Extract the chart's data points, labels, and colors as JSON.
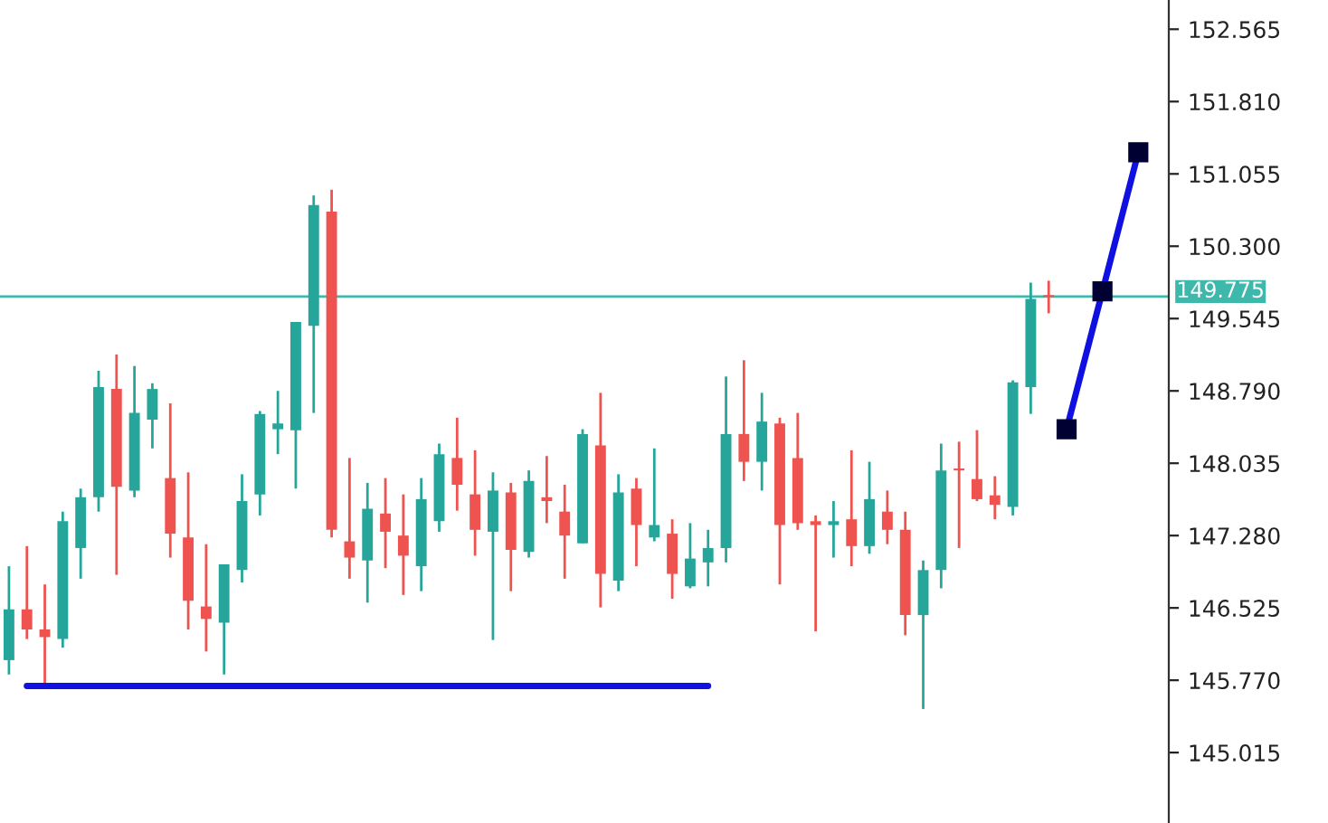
{
  "chart_data": {
    "type": "candlestick",
    "categories": [
      null,
      null,
      null,
      null,
      null,
      null,
      null,
      null,
      null,
      null,
      null,
      null,
      null,
      null,
      null,
      null,
      null,
      null,
      null,
      null,
      null,
      null,
      null,
      null,
      null,
      null,
      null,
      null,
      null,
      null,
      null,
      null,
      null,
      null,
      null,
      null,
      null,
      null,
      null,
      null,
      null,
      null,
      null,
      null,
      null,
      null,
      null,
      null,
      null,
      null,
      null,
      null,
      null,
      null,
      null,
      null,
      null,
      null,
      null,
      null,
      null,
      null,
      null,
      null
    ],
    "ohlc": [
      [
        145.98,
        146.96,
        145.83,
        146.51
      ],
      [
        146.51,
        147.17,
        146.2,
        146.3
      ],
      [
        146.3,
        146.77,
        145.73,
        146.22
      ],
      [
        146.2,
        147.53,
        146.11,
        147.43
      ],
      [
        147.15,
        147.77,
        146.83,
        147.68
      ],
      [
        147.68,
        149.0,
        147.53,
        148.83
      ],
      [
        148.81,
        149.17,
        146.87,
        147.79
      ],
      [
        147.75,
        149.05,
        147.68,
        148.56
      ],
      [
        148.49,
        148.87,
        148.19,
        148.81
      ],
      [
        147.88,
        148.66,
        147.05,
        147.3
      ],
      [
        147.26,
        147.94,
        146.3,
        146.6
      ],
      [
        146.54,
        147.19,
        146.07,
        146.41
      ],
      [
        146.37,
        146.98,
        145.83,
        146.98
      ],
      [
        146.92,
        147.92,
        146.79,
        147.64
      ],
      [
        147.71,
        148.58,
        147.49,
        148.55
      ],
      [
        148.39,
        148.79,
        148.13,
        148.45
      ],
      [
        148.38,
        149.51,
        147.77,
        149.51
      ],
      [
        149.47,
        150.83,
        148.56,
        150.73
      ],
      [
        150.66,
        150.89,
        147.26,
        147.34
      ],
      [
        147.22,
        148.09,
        146.83,
        147.05
      ],
      [
        147.02,
        147.83,
        146.58,
        147.56
      ],
      [
        147.51,
        147.88,
        146.94,
        147.32
      ],
      [
        147.28,
        147.71,
        146.66,
        147.07
      ],
      [
        146.96,
        147.88,
        146.7,
        147.66
      ],
      [
        147.43,
        148.24,
        147.32,
        148.13
      ],
      [
        148.09,
        148.51,
        147.54,
        147.81
      ],
      [
        147.71,
        148.17,
        147.07,
        147.34
      ],
      [
        147.32,
        147.94,
        146.19,
        147.75
      ],
      [
        147.73,
        147.83,
        146.7,
        147.13
      ],
      [
        147.11,
        147.96,
        147.05,
        147.85
      ],
      [
        147.68,
        148.11,
        147.41,
        147.64
      ],
      [
        147.53,
        147.81,
        146.83,
        147.28
      ],
      [
        147.2,
        148.39,
        147.2,
        148.34
      ],
      [
        148.22,
        148.77,
        146.53,
        146.88
      ],
      [
        146.81,
        147.92,
        146.7,
        147.73
      ],
      [
        147.77,
        147.88,
        146.96,
        147.39
      ],
      [
        147.26,
        148.19,
        147.22,
        147.39
      ],
      [
        147.3,
        147.45,
        146.62,
        146.88
      ],
      [
        146.75,
        147.41,
        146.73,
        147.04
      ],
      [
        147.0,
        147.34,
        146.75,
        147.15
      ],
      [
        147.15,
        148.94,
        147.0,
        148.34
      ],
      [
        148.34,
        149.11,
        147.85,
        148.05
      ],
      [
        148.05,
        148.77,
        147.75,
        148.47
      ],
      [
        148.45,
        148.51,
        146.77,
        147.39
      ],
      [
        148.09,
        148.56,
        147.34,
        147.41
      ],
      [
        147.43,
        147.49,
        146.28,
        147.39
      ],
      [
        147.39,
        147.64,
        147.05,
        147.43
      ],
      [
        147.45,
        148.17,
        146.96,
        147.17
      ],
      [
        147.17,
        148.05,
        147.09,
        147.66
      ],
      [
        147.53,
        147.75,
        147.19,
        147.34
      ],
      [
        147.34,
        147.53,
        146.24,
        146.45
      ],
      [
        146.45,
        147.02,
        145.47,
        146.92
      ],
      [
        146.92,
        148.24,
        146.73,
        147.96
      ],
      [
        147.98,
        148.26,
        147.15,
        147.96
      ],
      [
        147.87,
        148.38,
        147.64,
        147.66
      ],
      [
        147.7,
        147.9,
        147.45,
        147.6
      ],
      [
        147.58,
        148.9,
        147.49,
        148.88
      ],
      [
        148.83,
        149.92,
        148.55,
        149.75
      ],
      [
        149.79,
        149.94,
        149.6,
        149.77
      ],
      null,
      null,
      null,
      null,
      null
    ],
    "colors": [
      "#26a69a",
      "#ef5350",
      "#ef5350",
      "#26a69a",
      "#26a69a",
      "#26a69a",
      "#ef5350",
      "#26a69a",
      "#26a69a",
      "#ef5350",
      "#ef5350",
      "#ef5350",
      "#26a69a",
      "#26a69a",
      "#26a69a",
      "#26a69a",
      "#26a69a",
      "#26a69a",
      "#ef5350",
      "#ef5350",
      "#26a69a",
      "#ef5350",
      "#ef5350",
      "#26a69a",
      "#26a69a",
      "#ef5350",
      "#ef5350",
      "#26a69a",
      "#ef5350",
      "#26a69a",
      "#ef5350",
      "#ef5350",
      "#26a69a",
      "#ef5350",
      "#26a69a",
      "#ef5350",
      "#26a69a",
      "#ef5350",
      "#26a69a",
      "#26a69a",
      "#26a69a",
      "#ef5350",
      "#26a69a",
      "#ef5350",
      "#ef5350",
      "#ef5350",
      "#26a69a",
      "#ef5350",
      "#26a69a",
      "#ef5350",
      "#ef5350",
      "#26a69a",
      "#26a69a",
      "#ef5350",
      "#ef5350",
      "#ef5350",
      "#26a69a",
      "#26a69a",
      "#ef5350",
      null,
      null,
      null,
      null,
      null
    ],
    "series": [
      {
        "type": "line",
        "color": "#1010e0",
        "marker": "none",
        "values": [
          null,
          145.71,
          145.71,
          145.71,
          145.71,
          145.71,
          145.71,
          145.71,
          145.71,
          145.71,
          145.71,
          145.71,
          145.71,
          145.71,
          145.71,
          145.71,
          145.71,
          145.71,
          145.71,
          145.71,
          145.71,
          145.71,
          145.71,
          145.71,
          145.71,
          145.71,
          145.71,
          145.71,
          145.71,
          145.71,
          145.71,
          145.71,
          145.71,
          145.71,
          145.71,
          145.71,
          145.71,
          145.71,
          145.71,
          145.71,
          null,
          null,
          null,
          null,
          null,
          null,
          null,
          null,
          null,
          null,
          null,
          null,
          null,
          null,
          null,
          null,
          null,
          null,
          null,
          null,
          null,
          null,
          null,
          null
        ]
      },
      {
        "type": "line",
        "color": "#1010e0",
        "marker": "square",
        "values": [
          null,
          null,
          null,
          null,
          null,
          null,
          null,
          null,
          null,
          null,
          null,
          null,
          null,
          null,
          null,
          null,
          null,
          null,
          null,
          null,
          null,
          null,
          null,
          null,
          null,
          null,
          null,
          null,
          null,
          null,
          null,
          null,
          null,
          null,
          null,
          null,
          null,
          null,
          null,
          null,
          null,
          null,
          null,
          null,
          null,
          null,
          null,
          null,
          null,
          null,
          null,
          null,
          null,
          null,
          null,
          null,
          null,
          null,
          null,
          148.39,
          null,
          149.83,
          null,
          151.28
        ]
      }
    ],
    "ylim": [
      144.28,
      152.87
    ],
    "yticks": [
      {
        "value": 145.015,
        "label": "145.015"
      },
      {
        "value": 145.77,
        "label": "145.770"
      },
      {
        "value": 146.525,
        "label": "146.525"
      },
      {
        "value": 147.28,
        "label": "147.280"
      },
      {
        "value": 148.035,
        "label": "148.035"
      },
      {
        "value": 148.79,
        "label": "148.790"
      },
      {
        "value": 149.545,
        "label": "149.545"
      },
      {
        "value": 150.3,
        "label": "150.300"
      },
      {
        "value": 151.055,
        "label": "151.055"
      },
      {
        "value": 151.81,
        "label": "151.810"
      },
      {
        "value": 152.565,
        "label": "152.565"
      }
    ],
    "ref_lines": [
      {
        "axis": "y",
        "value": 149.775,
        "label": "149.775",
        "color": "#3fb8ac"
      }
    ],
    "tick_labels": "y",
    "grid": false
  }
}
